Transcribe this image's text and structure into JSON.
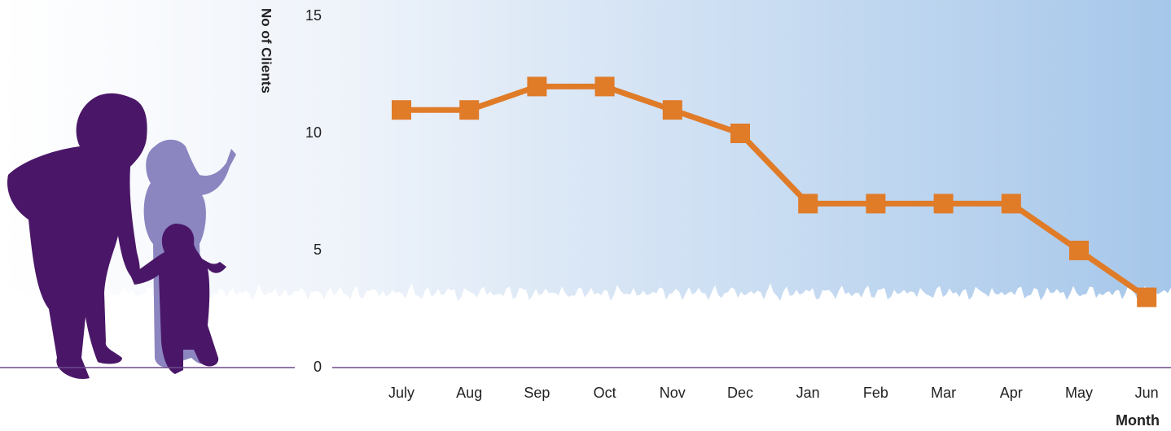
{
  "chart_data": {
    "type": "line",
    "y_label": "No of Clients",
    "x_label": "Month",
    "categories": [
      "July",
      "Aug",
      "Sep",
      "Oct",
      "Nov",
      "Dec",
      "Jan",
      "Feb",
      "Mar",
      "Apr",
      "May",
      "Jun"
    ],
    "series": [
      {
        "name": "Clients",
        "color": "#e07b28",
        "values": [
          11,
          11,
          12,
          12,
          11,
          10,
          7,
          7,
          7,
          7,
          5,
          3
        ]
      }
    ],
    "ylim": [
      0,
      15
    ],
    "yticks": [
      0,
      5,
      10,
      15
    ],
    "grid": false
  }
}
